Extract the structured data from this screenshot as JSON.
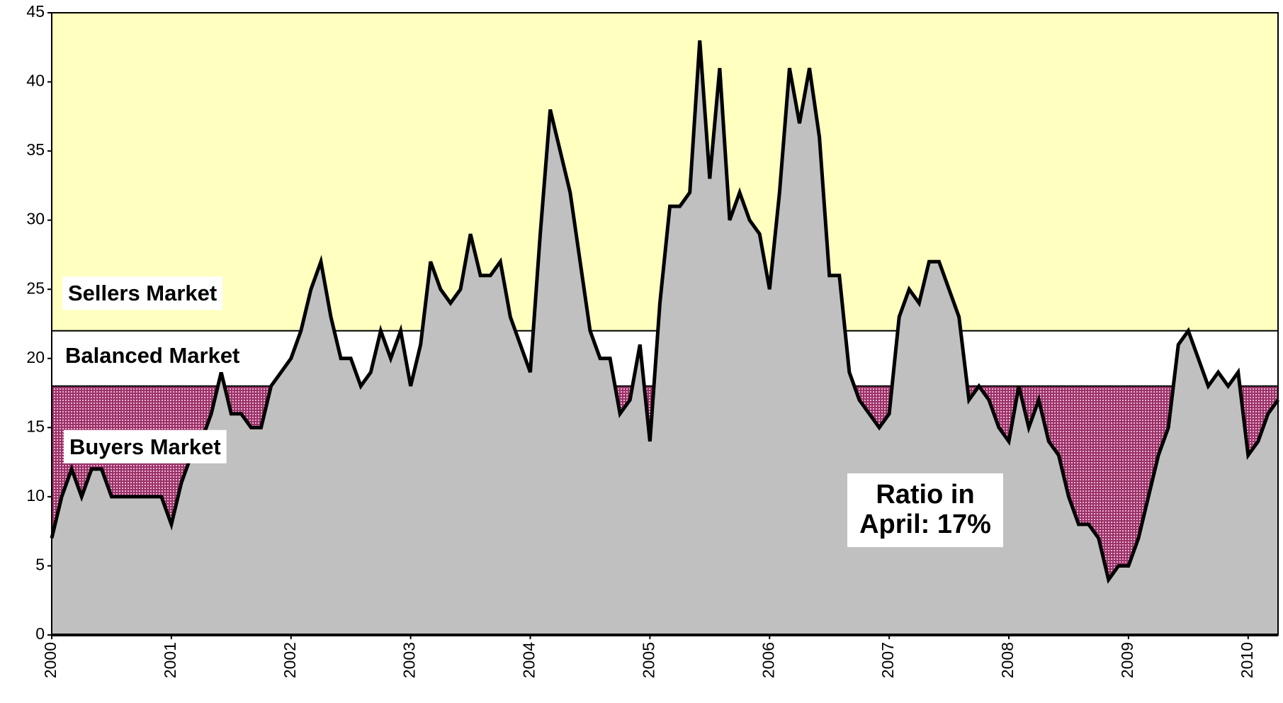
{
  "chart_data": {
    "type": "area",
    "categories": [
      "2000",
      null,
      null,
      null,
      null,
      null,
      null,
      null,
      null,
      null,
      null,
      null,
      "2001",
      null,
      null,
      null,
      null,
      null,
      null,
      null,
      null,
      null,
      null,
      null,
      "2002",
      null,
      null,
      null,
      null,
      null,
      null,
      null,
      null,
      null,
      null,
      null,
      "2003",
      null,
      null,
      null,
      null,
      null,
      null,
      null,
      null,
      null,
      null,
      null,
      "2004",
      null,
      null,
      null,
      null,
      null,
      null,
      null,
      null,
      null,
      null,
      null,
      "2005",
      null,
      null,
      null,
      null,
      null,
      null,
      null,
      null,
      null,
      null,
      null,
      "2006",
      null,
      null,
      null,
      null,
      null,
      null,
      null,
      null,
      null,
      null,
      null,
      "2007",
      null,
      null,
      null,
      null,
      null,
      null,
      null,
      null,
      null,
      null,
      null,
      "2008",
      null,
      null,
      null,
      null,
      null,
      null,
      null,
      null,
      null,
      null,
      null,
      "2009",
      null,
      null,
      null,
      null,
      null,
      null,
      null,
      null,
      null,
      null,
      null,
      "2010",
      null,
      null,
      null
    ],
    "values": [
      7,
      10,
      12,
      10,
      12,
      12,
      10,
      10,
      10,
      10,
      10,
      10,
      8,
      11,
      13,
      14,
      16,
      19,
      16,
      16,
      15,
      15,
      18,
      19,
      20,
      22,
      25,
      27,
      23,
      20,
      20,
      18,
      19,
      22,
      20,
      22,
      18,
      21,
      27,
      25,
      24,
      25,
      29,
      26,
      26,
      27,
      23,
      21,
      19,
      29,
      38,
      35,
      32,
      27,
      22,
      20,
      20,
      16,
      17,
      21,
      14,
      24,
      31,
      31,
      32,
      43,
      33,
      41,
      30,
      32,
      30,
      29,
      25,
      32,
      41,
      37,
      41,
      36,
      26,
      26,
      19,
      17,
      16,
      15,
      16,
      23,
      25,
      24,
      27,
      27,
      25,
      23,
      17,
      18,
      17,
      15,
      14,
      18,
      15,
      17,
      14,
      13,
      10,
      8,
      8,
      7,
      4,
      5,
      5,
      7,
      10,
      13,
      15,
      21,
      22,
      20,
      18,
      19,
      18,
      19,
      13,
      14,
      16,
      17
    ],
    "color": "#c0c0c0",
    "ylim": [
      0,
      45
    ],
    "yticks": [
      0,
      5,
      10,
      15,
      20,
      25,
      30,
      35,
      40,
      45
    ],
    "bands": [
      {
        "name": "Sellers Market",
        "from": 22,
        "to": 45,
        "color": "#ffffc0"
      },
      {
        "name": "Balanced Market",
        "from": 18,
        "to": 22,
        "color": "#ffffff"
      },
      {
        "name": "Buyers Market",
        "from": 0,
        "to": 18,
        "color": "#993366"
      }
    ],
    "annotation": [
      "Ratio in",
      "April: 17%"
    ]
  }
}
